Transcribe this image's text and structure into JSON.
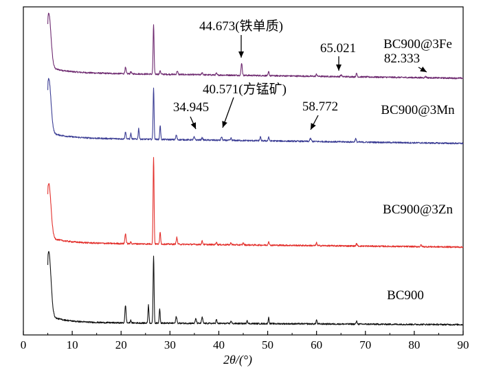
{
  "chart_data": {
    "type": "line",
    "xlabel": "2θ/(°)",
    "ylabel": "",
    "xlim": [
      0,
      90
    ],
    "x_ticks": [
      0,
      10,
      20,
      30,
      40,
      50,
      60,
      70,
      80,
      90
    ],
    "grid": false,
    "series": [
      {
        "name": "BC900@3Fe",
        "color": "#6e2a70",
        "peaks": [
          {
            "x": 5.2,
            "h": 0.95,
            "w": 0.45
          },
          {
            "x": 20.9,
            "h": 0.11,
            "w": 0.12
          },
          {
            "x": 22.0,
            "h": 0.04,
            "w": 0.1
          },
          {
            "x": 26.65,
            "h": 0.88,
            "w": 0.1
          },
          {
            "x": 28.0,
            "h": 0.07,
            "w": 0.1
          },
          {
            "x": 31.5,
            "h": 0.06,
            "w": 0.12
          },
          {
            "x": 36.6,
            "h": 0.04,
            "w": 0.12
          },
          {
            "x": 39.5,
            "h": 0.03,
            "w": 0.1
          },
          {
            "x": 44.673,
            "h": 0.22,
            "w": 0.12
          },
          {
            "x": 50.2,
            "h": 0.07,
            "w": 0.1
          },
          {
            "x": 60.0,
            "h": 0.04,
            "w": 0.1
          },
          {
            "x": 65.021,
            "h": 0.03,
            "w": 0.12
          },
          {
            "x": 68.2,
            "h": 0.06,
            "w": 0.12
          },
          {
            "x": 82.333,
            "h": 0.02,
            "w": 0.15
          }
        ]
      },
      {
        "name": "BC900@3Mn",
        "color": "#3b3d94",
        "peaks": [
          {
            "x": 5.2,
            "h": 0.95,
            "w": 0.45
          },
          {
            "x": 20.9,
            "h": 0.12,
            "w": 0.12
          },
          {
            "x": 22.0,
            "h": 0.1,
            "w": 0.1
          },
          {
            "x": 23.6,
            "h": 0.19,
            "w": 0.1
          },
          {
            "x": 26.65,
            "h": 0.92,
            "w": 0.1
          },
          {
            "x": 28.0,
            "h": 0.25,
            "w": 0.1
          },
          {
            "x": 31.3,
            "h": 0.08,
            "w": 0.12
          },
          {
            "x": 34.945,
            "h": 0.05,
            "w": 0.12
          },
          {
            "x": 36.6,
            "h": 0.04,
            "w": 0.12
          },
          {
            "x": 40.571,
            "h": 0.06,
            "w": 0.12
          },
          {
            "x": 42.5,
            "h": 0.04,
            "w": 0.1
          },
          {
            "x": 48.5,
            "h": 0.07,
            "w": 0.1
          },
          {
            "x": 50.2,
            "h": 0.07,
            "w": 0.1
          },
          {
            "x": 58.772,
            "h": 0.05,
            "w": 0.15
          },
          {
            "x": 68.0,
            "h": 0.06,
            "w": 0.12
          }
        ]
      },
      {
        "name": "BC900@3Zn",
        "color": "#e3302c",
        "peaks": [
          {
            "x": 5.2,
            "h": 0.95,
            "w": 0.45
          },
          {
            "x": 20.9,
            "h": 0.18,
            "w": 0.12
          },
          {
            "x": 22.0,
            "h": 0.03,
            "w": 0.1
          },
          {
            "x": 26.65,
            "h": 1.55,
            "w": 0.1
          },
          {
            "x": 28.0,
            "h": 0.22,
            "w": 0.1
          },
          {
            "x": 31.4,
            "h": 0.12,
            "w": 0.12
          },
          {
            "x": 36.6,
            "h": 0.06,
            "w": 0.12
          },
          {
            "x": 39.5,
            "h": 0.05,
            "w": 0.1
          },
          {
            "x": 42.5,
            "h": 0.04,
            "w": 0.1
          },
          {
            "x": 45.0,
            "h": 0.04,
            "w": 0.1
          },
          {
            "x": 50.2,
            "h": 0.07,
            "w": 0.1
          },
          {
            "x": 60.0,
            "h": 0.05,
            "w": 0.1
          },
          {
            "x": 68.2,
            "h": 0.04,
            "w": 0.12
          },
          {
            "x": 81.4,
            "h": 0.03,
            "w": 0.12
          }
        ]
      },
      {
        "name": "BC900",
        "color": "#111111",
        "peaks": [
          {
            "x": 5.2,
            "h": 0.95,
            "w": 0.45
          },
          {
            "x": 20.9,
            "h": 0.26,
            "w": 0.12
          },
          {
            "x": 22.0,
            "h": 0.04,
            "w": 0.1
          },
          {
            "x": 25.6,
            "h": 0.27,
            "w": 0.1
          },
          {
            "x": 26.65,
            "h": 1.0,
            "w": 0.1
          },
          {
            "x": 27.9,
            "h": 0.22,
            "w": 0.1
          },
          {
            "x": 31.3,
            "h": 0.1,
            "w": 0.12
          },
          {
            "x": 35.3,
            "h": 0.07,
            "w": 0.12
          },
          {
            "x": 36.6,
            "h": 0.09,
            "w": 0.12
          },
          {
            "x": 39.5,
            "h": 0.06,
            "w": 0.1
          },
          {
            "x": 42.5,
            "h": 0.04,
            "w": 0.1
          },
          {
            "x": 45.8,
            "h": 0.05,
            "w": 0.1
          },
          {
            "x": 50.2,
            "h": 0.09,
            "w": 0.1
          },
          {
            "x": 60.0,
            "h": 0.06,
            "w": 0.1
          },
          {
            "x": 68.2,
            "h": 0.04,
            "w": 0.12
          }
        ]
      }
    ],
    "annotations": [
      {
        "text": "44.673(铁单质)",
        "x": 44.673,
        "series": 0
      },
      {
        "text": "65.021",
        "x": 65.021,
        "series": 0
      },
      {
        "text": "82.333",
        "x": 82.333,
        "series": 0
      },
      {
        "text": "40.571(方锰矿)",
        "x": 40.571,
        "series": 1
      },
      {
        "text": "34.945",
        "x": 34.945,
        "series": 1
      },
      {
        "text": "58.772",
        "x": 58.772,
        "series": 1
      }
    ]
  }
}
